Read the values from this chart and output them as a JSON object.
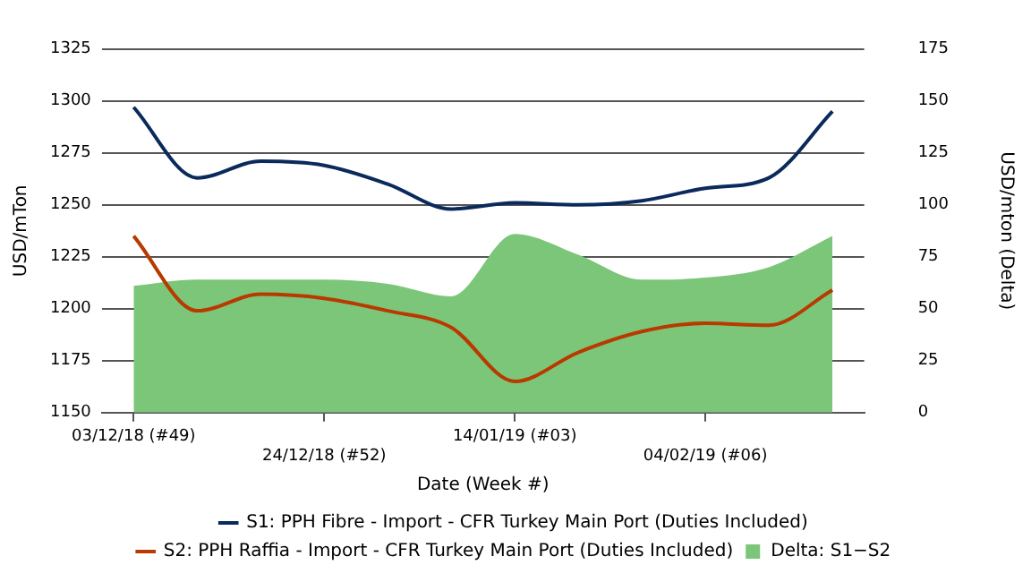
{
  "chart_data": {
    "type": "line",
    "xlabel": "Date (Week #)",
    "ylabel": "USD/mTon",
    "y2label": "USD/mton (Delta)",
    "categories": [
      "03/12/18 (#49)",
      null,
      null,
      "24/12/18 (#52)",
      null,
      null,
      "14/01/19 (#03)",
      null,
      null,
      "04/02/19 (#06)",
      null,
      null
    ],
    "series": [
      {
        "name": "S1: PPH Fibre - Import - CFR Turkey Main Port (Duties Included)",
        "type": "line",
        "color": "#0b2a5c",
        "values": [
          1297,
          1263,
          1271,
          1269,
          1260,
          1248,
          1251,
          1250,
          1252,
          1258,
          1263,
          1295
        ]
      },
      {
        "name": "S2: PPH Raffia - Import - CFR Turkey Main Port (Duties Included)",
        "type": "line",
        "color": "#b83a00",
        "values": [
          1235,
          1199,
          1207,
          1205,
          1199,
          1191,
          1165,
          1179,
          1189,
          1193,
          1192,
          1209
        ]
      },
      {
        "name": "Delta: S1−S2",
        "type": "area",
        "axis": "y2",
        "color": "#7cc67a",
        "values": [
          61,
          64,
          64,
          64,
          62,
          56,
          86,
          76,
          64,
          65,
          70,
          85
        ]
      }
    ],
    "ylim": [
      1150,
      1325
    ],
    "yticks": [
      1150,
      1175,
      1200,
      1225,
      1250,
      1275,
      1300,
      1325
    ],
    "y2lim": [
      0,
      175
    ],
    "y2ticks": [
      0,
      25,
      50,
      75,
      100,
      125,
      150,
      175
    ],
    "grid": "y",
    "legend": "bottom"
  }
}
